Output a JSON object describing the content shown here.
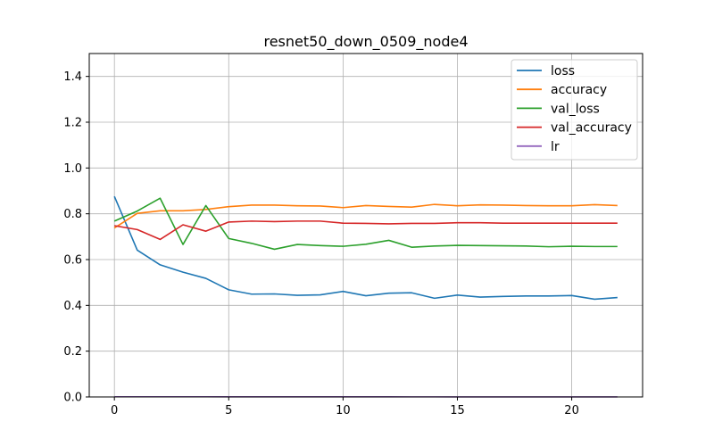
{
  "chart_data": {
    "type": "line",
    "title": "resnet50_down_0509_node4",
    "xlabel": "",
    "ylabel": "",
    "x": [
      0,
      1,
      2,
      3,
      4,
      5,
      6,
      7,
      8,
      9,
      10,
      11,
      12,
      13,
      14,
      15,
      16,
      17,
      18,
      19,
      20,
      21,
      22
    ],
    "xlim": [
      -1.1,
      23.1
    ],
    "ylim": [
      0,
      1.5
    ],
    "xticks": [
      0,
      5,
      10,
      15,
      20
    ],
    "xtick_labels": [
      "0",
      "5",
      "10",
      "15",
      "20"
    ],
    "yticks": [
      0.0,
      0.2,
      0.4,
      0.6,
      0.8,
      1.0,
      1.2,
      1.4
    ],
    "ytick_labels": [
      "0.0",
      "0.2",
      "0.4",
      "0.6",
      "0.8",
      "1.0",
      "1.2",
      "1.4"
    ],
    "grid": true,
    "legend_position": "top-right",
    "series": [
      {
        "name": "loss",
        "color": "#1f77b4",
        "values": [
          0.876,
          0.641,
          0.577,
          0.545,
          0.518,
          0.468,
          0.449,
          0.45,
          0.444,
          0.446,
          0.461,
          0.442,
          0.453,
          0.455,
          0.431,
          0.445,
          0.436,
          0.439,
          0.441,
          0.441,
          0.443,
          0.427,
          0.434
        ]
      },
      {
        "name": "accuracy",
        "color": "#ff7f0e",
        "values": [
          0.738,
          0.802,
          0.813,
          0.813,
          0.819,
          0.831,
          0.838,
          0.838,
          0.835,
          0.834,
          0.827,
          0.836,
          0.832,
          0.829,
          0.841,
          0.835,
          0.839,
          0.838,
          0.836,
          0.835,
          0.835,
          0.84,
          0.836
        ]
      },
      {
        "name": "val_loss",
        "color": "#2ca02c",
        "values": [
          0.768,
          0.812,
          0.868,
          0.666,
          0.836,
          0.692,
          0.671,
          0.645,
          0.666,
          0.661,
          0.658,
          0.667,
          0.684,
          0.654,
          0.659,
          0.662,
          0.661,
          0.66,
          0.659,
          0.656,
          0.658,
          0.657,
          0.657
        ]
      },
      {
        "name": "val_accuracy",
        "color": "#d62728",
        "values": [
          0.748,
          0.731,
          0.688,
          0.752,
          0.724,
          0.764,
          0.768,
          0.766,
          0.768,
          0.768,
          0.759,
          0.758,
          0.756,
          0.758,
          0.758,
          0.761,
          0.761,
          0.759,
          0.759,
          0.759,
          0.759,
          0.759,
          0.759
        ]
      },
      {
        "name": "lr",
        "color": "#9467bd",
        "values": [
          0.001,
          0.001,
          0.001,
          0.001,
          0.001,
          0.0009,
          0.0009,
          0.0008,
          0.0008,
          0.0007,
          0.0007,
          0.0006,
          0.0006,
          0.0005,
          0.0005,
          0.0004,
          0.0004,
          0.0003,
          0.0003,
          0.0002,
          0.0002,
          0.0001,
          0.0001
        ]
      }
    ]
  }
}
